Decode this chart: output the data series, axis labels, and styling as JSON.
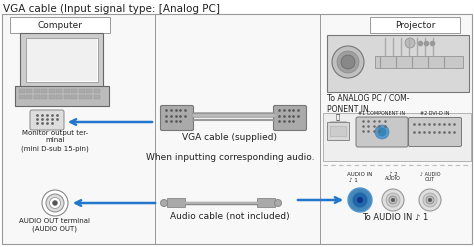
{
  "title": "VGA cable (Input signal type: [Analog PC]",
  "bg_color": "#ffffff",
  "border_color": "#999999",
  "arrow_color": "#2277cc",
  "text_color": "#222222",
  "dashed_color": "#bbbbbb",
  "computer_label": "Computer",
  "projector_label": "Projector",
  "monitor_label": "Monitor output ter-\nminal\n(mini D-sub 15-pin)",
  "audio_out_label": "AUDIO OUT terminal\n(AUDIO OUT)",
  "vga_cable_label": "VGA cable (supplied)",
  "audio_cable_label": "Audio cable (not included)",
  "audio_note": "When inputting corresponding audio.",
  "analog_label": "To ANALOG PC / COM-\nPONENT IN",
  "audio_in_label": "To AUDIO IN ♪ 1",
  "figsize": [
    4.74,
    2.47
  ],
  "dpi": 100
}
